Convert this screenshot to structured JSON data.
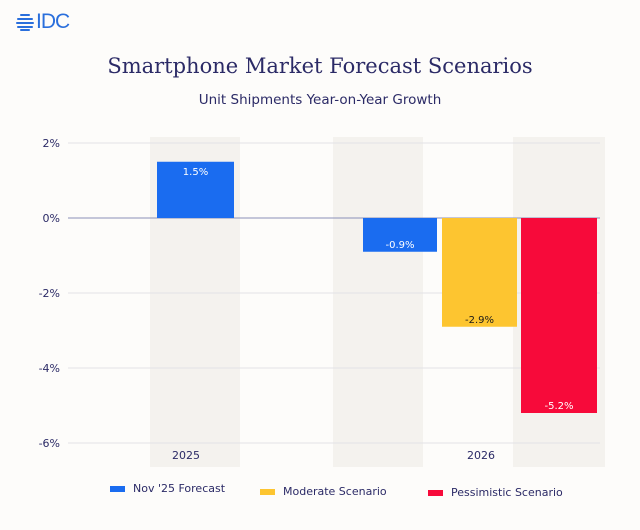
{
  "logo": "IDC",
  "title": "Smartphone Market Forecast Scenarios",
  "subtitle": "Unit Shipments Year-on-Year Growth",
  "chart_data": {
    "type": "bar",
    "title": "Smartphone Market Forecast Scenarios",
    "subtitle": "Unit Shipments Year-on-Year Growth",
    "categories": [
      "2025",
      "2026"
    ],
    "ylim": [
      -6,
      2
    ],
    "yticks": [
      2,
      0,
      -2,
      -4,
      -6
    ],
    "ytick_labels": [
      "2%",
      "0%",
      "-2%",
      "-4%",
      "-6%"
    ],
    "grid": true,
    "legend_position": "bottom",
    "series": [
      {
        "name": "Nov '25 Forecast",
        "color": "#1a6cf0",
        "values": [
          1.5,
          -0.9
        ],
        "labels": [
          "1.5%",
          "-0.9%"
        ]
      },
      {
        "name": "Moderate Scenario",
        "color": "#fdc530",
        "values": [
          null,
          -2.9
        ],
        "labels": [
          null,
          "-2.9%"
        ]
      },
      {
        "name": "Pessimistic Scenario",
        "color": "#f70a3a",
        "values": [
          null,
          -5.2
        ],
        "labels": [
          null,
          "-5.2%"
        ]
      }
    ]
  }
}
